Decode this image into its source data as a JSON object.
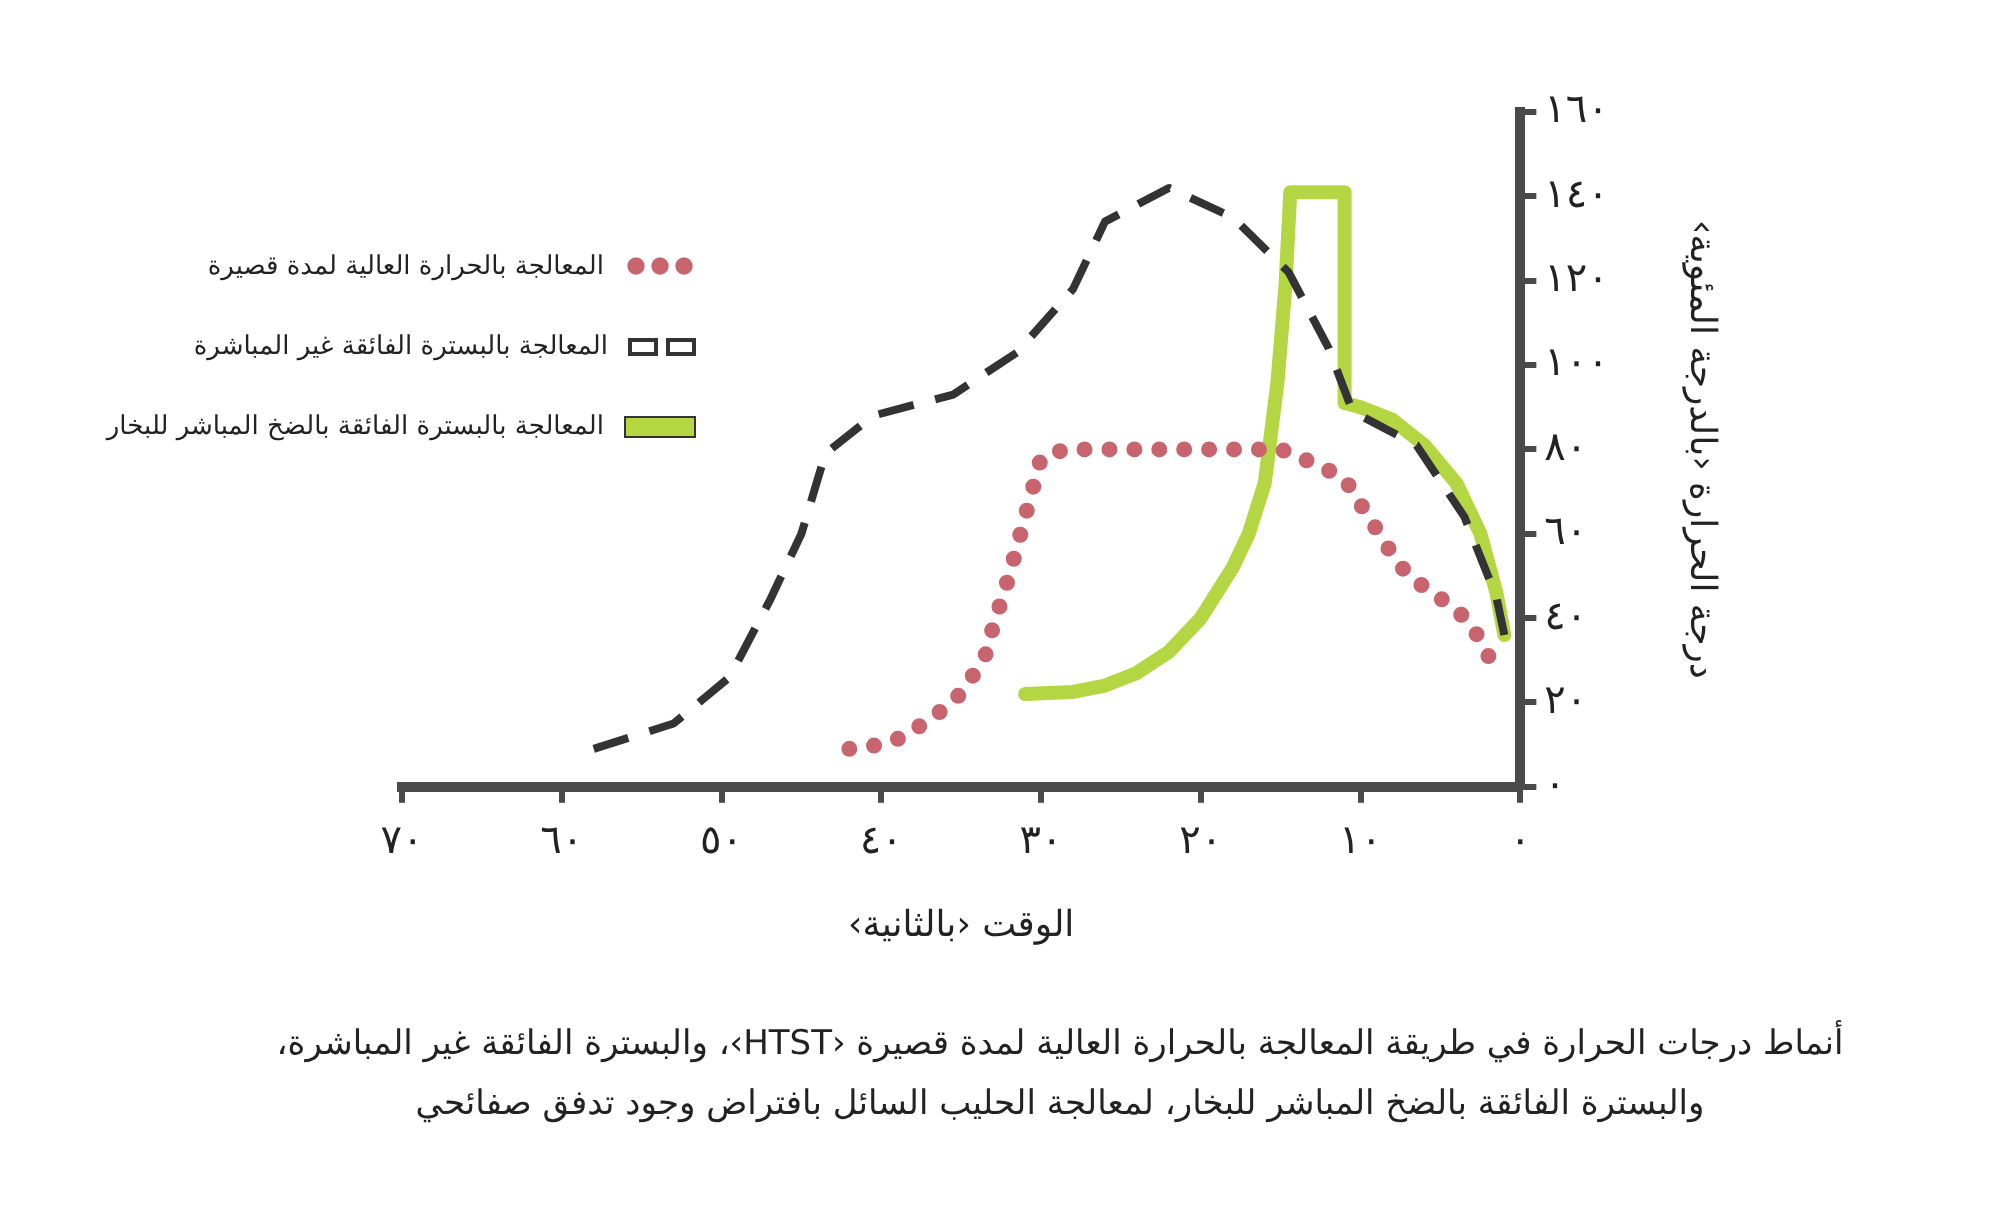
{
  "chart_data": {
    "type": "line",
    "xlabel": "الوقت ‹بالثانية›",
    "ylabel": "درجة الحرارة ‹بالدرجة المئوية›",
    "annotations": [
      "أنماط درجات الحرارة في طريقة المعالجة بالحرارة العالية لمدة قصيرة ‹HTST›، والبسترة الفائقة غير المباشرة، والبسترة الفائقة بالضخ المباشر للبخار، لمعالجة الحليب السائل بافتراض وجود تدفق صفائحي"
    ],
    "xlim": [
      70,
      0
    ],
    "xticks": [
      {
        "value": 70,
        "label": "٧٠"
      },
      {
        "value": 60,
        "label": "٦٠"
      },
      {
        "value": 50,
        "label": "٥٠"
      },
      {
        "value": 40,
        "label": "٤٠"
      },
      {
        "value": 30,
        "label": "٣٠"
      },
      {
        "value": 20,
        "label": "٢٠"
      },
      {
        "value": 10,
        "label": "١٠"
      },
      {
        "value": 0,
        "label": "٠"
      }
    ],
    "ylim": [
      0,
      160
    ],
    "yticks": [
      {
        "value": 0,
        "label": "٠"
      },
      {
        "value": 20,
        "label": "٢٠"
      },
      {
        "value": 40,
        "label": "٤٠"
      },
      {
        "value": 60,
        "label": "٦٠"
      },
      {
        "value": 80,
        "label": "٨٠"
      },
      {
        "value": 100,
        "label": "١٠٠"
      },
      {
        "value": 120,
        "label": "١٢٠"
      },
      {
        "value": 140,
        "label": "١٤٠"
      },
      {
        "value": 160,
        "label": "١٦٠"
      }
    ],
    "legend": "top left",
    "series": [
      {
        "name": "المعالجة بالحرارة العالية لمدة قصيرة",
        "color": "#c8646e",
        "line_style": "dotted",
        "x": [
          42,
          40,
          38.5,
          37,
          35.5,
          34.5,
          33.5,
          33,
          32.5,
          32,
          31.5,
          31,
          30.5,
          30,
          28.5,
          15,
          12.5,
          11,
          10,
          9,
          8,
          7,
          5.5,
          4,
          3,
          2
        ],
        "values": [
          9,
          10,
          12,
          16,
          20,
          25,
          31,
          38,
          44,
          50,
          57,
          64,
          71,
          78,
          80,
          80,
          76,
          73,
          67,
          61,
          55,
          50,
          46,
          42,
          38,
          31
        ]
      },
      {
        "name": "المعالجة بالبسترة الفائقة غير المباشرة",
        "color": "#333333",
        "line_style": "dashed",
        "x": [
          58,
          53,
          49.5,
          47,
          45,
          43.5,
          40.5,
          35.5,
          31.5,
          28,
          26,
          22,
          18,
          14.5,
          12,
          10.5,
          6.5,
          3.5,
          1.5,
          1
        ],
        "values": [
          9,
          15,
          26,
          44,
          60,
          79,
          88,
          93,
          103,
          118,
          134,
          142,
          135,
          122,
          104,
          89,
          81,
          64,
          45,
          36
        ]
      },
      {
        "name": "المعالجة بالبسترة الفائقة بالضخ المباشر للبخار",
        "color": "#b5d643",
        "line_style": "solid",
        "x": [
          31,
          28,
          26,
          24,
          22,
          20,
          18,
          17,
          16,
          15.2,
          14.7,
          14.4,
          11,
          11,
          10,
          8,
          6,
          4,
          2.5,
          1.5,
          1
        ],
        "values": [
          22,
          22.5,
          24,
          27,
          32,
          40,
          52,
          60,
          72,
          96,
          119,
          141,
          141,
          91,
          90,
          87,
          81,
          72,
          60,
          46,
          36
        ]
      }
    ]
  }
}
